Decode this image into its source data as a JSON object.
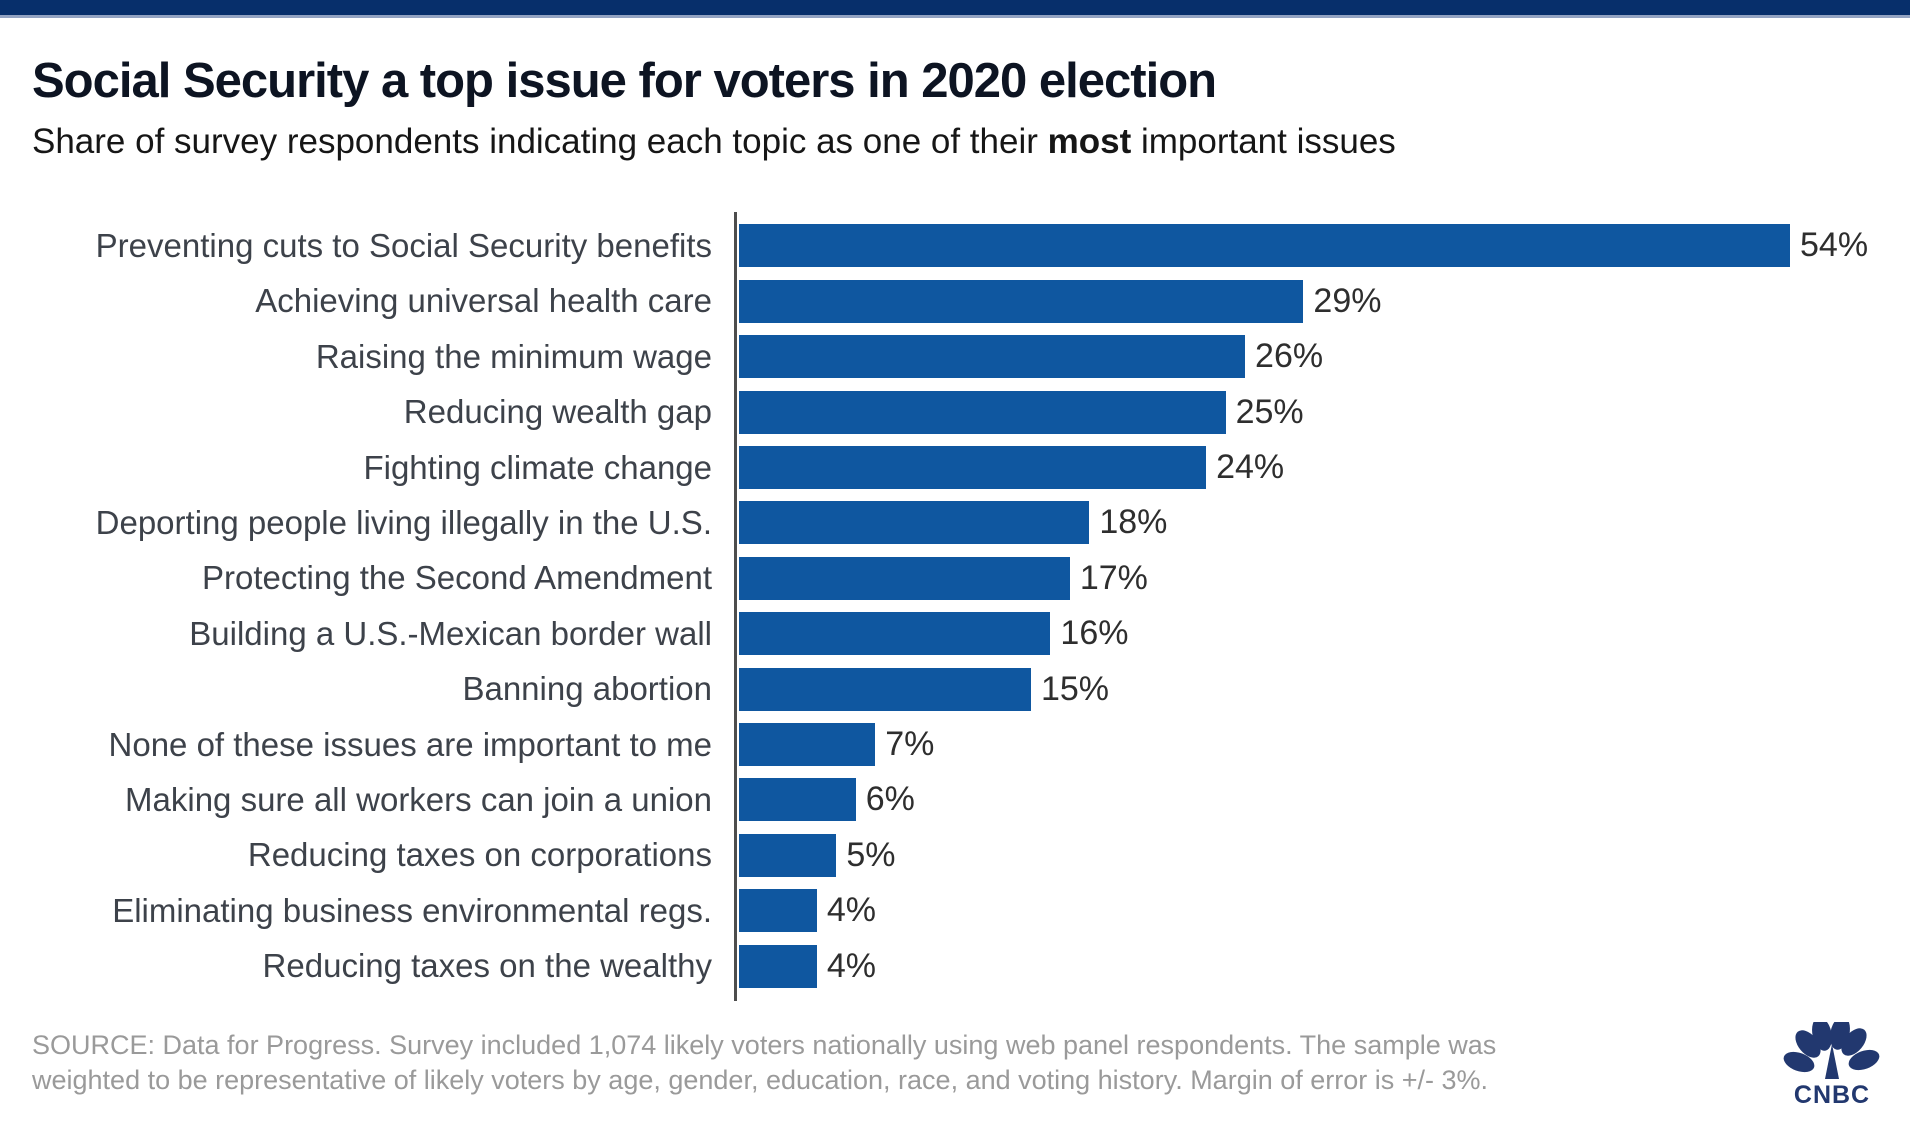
{
  "page": {
    "top_band_color": "#072f6b",
    "accent_line_color": "#93a3c2",
    "background": "#ffffff"
  },
  "header": {
    "title": "Social Security a top issue for voters in 2020 election",
    "subtitle_prefix": "Share of survey respondents indicating each topic as one of their ",
    "subtitle_bold": "most",
    "subtitle_suffix": " important issues"
  },
  "chart_data": {
    "type": "bar",
    "orientation": "horizontal",
    "title": "Social Security a top issue for voters in 2020 election",
    "xlabel": "",
    "ylabel": "",
    "grid": false,
    "legend": false,
    "xlim": [
      0,
      54
    ],
    "bar_color": "#0f57a0",
    "categories": [
      "Preventing cuts to Social Security benefits",
      "Achieving universal health care",
      "Raising the minimum wage",
      "Reducing wealth gap",
      "Fighting climate change",
      "Deporting people living illegally in the U.S.",
      "Protecting the Second Amendment",
      "Building a U.S.-Mexican border wall",
      "Banning abortion",
      "None of these issues are important to me",
      "Making sure all workers can join a union",
      "Reducing taxes on corporations",
      "Eliminating business environmental regs.",
      "Reducing taxes on the wealthy"
    ],
    "values": [
      54,
      29,
      26,
      25,
      24,
      18,
      17,
      16,
      15,
      7,
      6,
      5,
      4,
      4
    ],
    "value_labels": [
      "54%",
      "29%",
      "26%",
      "25%",
      "24%",
      "18%",
      "17%",
      "16%",
      "15%",
      "7%",
      "6%",
      "5%",
      "4%",
      "4%"
    ]
  },
  "footer": {
    "source_line1": "SOURCE: Data for Progress. Survey included 1,074 likely voters nationally using web panel respondents. The sample was",
    "source_line2": "weighted to be representative of likely voters by age, gender, education, race, and voting history. Margin of error is +/- 3%.",
    "logo_text": "CNBC"
  }
}
